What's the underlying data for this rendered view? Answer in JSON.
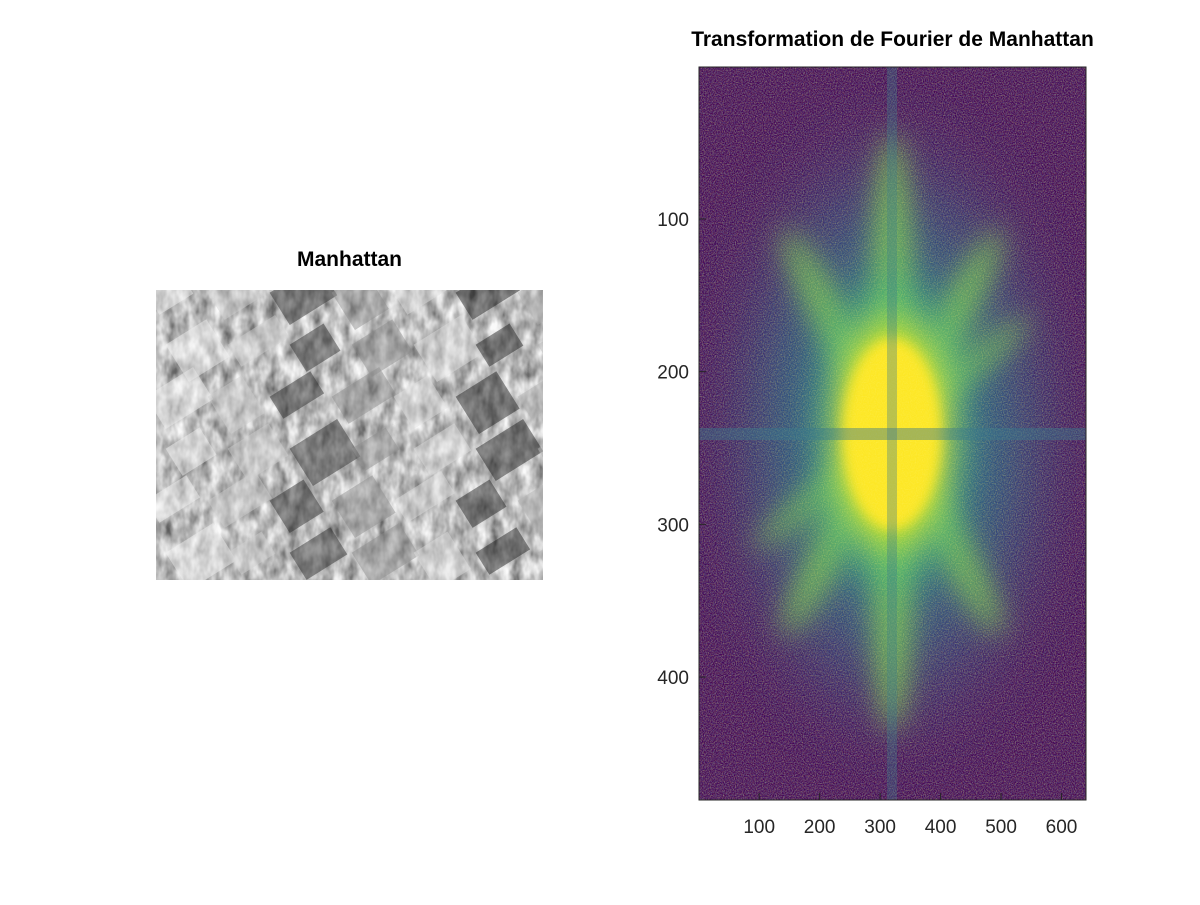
{
  "figure": {
    "background": "#ffffff"
  },
  "chart_data": [
    {
      "type": "image",
      "title": "Manhattan",
      "colormap": "gray",
      "axes_visible": false,
      "description_colors": {
        "dark": "#1a1a1a",
        "light": "#e8e8e8"
      }
    },
    {
      "type": "heatmap",
      "title": "Transformation de Fourier de Manhattan",
      "colormap": "viridis",
      "colors": {
        "low": "#440154",
        "mid_low": "#3b528b",
        "mid": "#21918c",
        "mid_high": "#5ec962",
        "high": "#fde725"
      },
      "xlim": [
        0.5,
        640.5
      ],
      "ylim": [
        0.5,
        480.5
      ],
      "y_reversed": true,
      "x_ticks": [
        100,
        200,
        300,
        400,
        500,
        600
      ],
      "y_ticks": [
        100,
        200,
        300,
        400
      ],
      "x_tick_labels": [
        "100",
        "200",
        "300",
        "400",
        "500",
        "600"
      ],
      "y_tick_labels": [
        "100",
        "200",
        "300",
        "400"
      ],
      "center": [
        320,
        240
      ],
      "grid": false
    }
  ]
}
